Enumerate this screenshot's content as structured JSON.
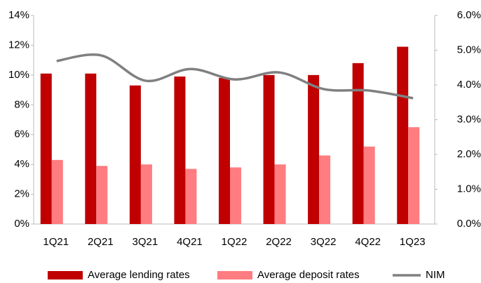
{
  "chart_data": {
    "type": "bar-line",
    "categories": [
      "1Q21",
      "2Q21",
      "3Q21",
      "4Q21",
      "1Q22",
      "2Q22",
      "3Q22",
      "4Q22",
      "1Q23"
    ],
    "series": [
      {
        "name": "Average lending rates",
        "color": "#c00000",
        "type": "bar",
        "values": [
          10.1,
          10.1,
          9.3,
          9.9,
          9.8,
          10.0,
          10.0,
          10.8,
          11.9
        ]
      },
      {
        "name": "Average deposit rates",
        "color": "#ff7c80",
        "type": "bar",
        "values": [
          4.3,
          3.9,
          4.0,
          3.7,
          3.8,
          4.0,
          4.6,
          5.2,
          6.5
        ]
      },
      {
        "name": "NIM",
        "color": "#808080",
        "type": "line",
        "axis": "y2",
        "values": [
          4.69,
          4.85,
          4.12,
          4.46,
          4.16,
          4.36,
          3.88,
          3.84,
          3.62
        ]
      }
    ],
    "ylim": [
      0,
      14
    ],
    "yticks": [
      {
        "value": 0,
        "label": "0%"
      },
      {
        "value": 2,
        "label": "2%"
      },
      {
        "value": 4,
        "label": "4%"
      },
      {
        "value": 6,
        "label": "6%"
      },
      {
        "value": 8,
        "label": "8%"
      },
      {
        "value": 10,
        "label": "10%"
      },
      {
        "value": 12,
        "label": "12%"
      },
      {
        "value": 14,
        "label": "14%"
      }
    ],
    "y2lim": [
      0,
      6
    ],
    "y2ticks": [
      {
        "value": 0,
        "label": "0.0%"
      },
      {
        "value": 1,
        "label": "1.0%"
      },
      {
        "value": 2,
        "label": "2.0%"
      },
      {
        "value": 3,
        "label": "3.0%"
      },
      {
        "value": 4,
        "label": "4.0%"
      },
      {
        "value": 5,
        "label": "5.0%"
      },
      {
        "value": 6,
        "label": "6.0%"
      }
    ],
    "grid": false,
    "legend": "bottom"
  }
}
